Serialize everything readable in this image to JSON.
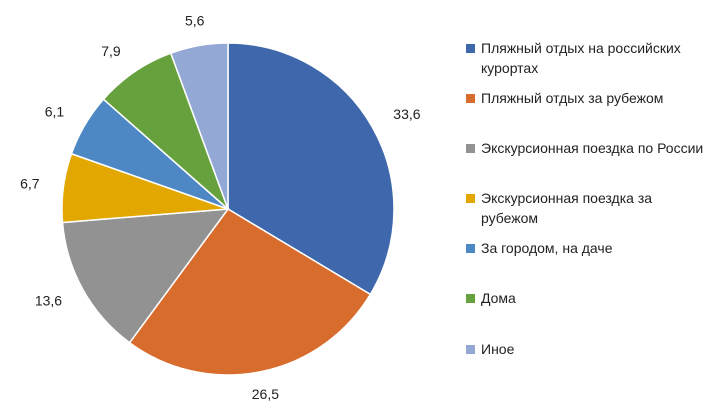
{
  "chart_data": {
    "type": "pie",
    "start_angle_deg": 0,
    "direction": "clockwise",
    "legend_position": "right",
    "slices": [
      {
        "label": "Пляжный отдых на российских курортах",
        "value": 33.6,
        "value_label": "33,6",
        "color": "#3F68AC"
      },
      {
        "label": "Пляжный отдых за рубежом",
        "value": 26.5,
        "value_label": "26,5",
        "color": "#D86C2D"
      },
      {
        "label": "Экскурсионная поездка по России",
        "value": 13.6,
        "value_label": "13,6",
        "color": "#929292"
      },
      {
        "label": "Экскурсионная поездка за рубежом",
        "value": 6.7,
        "value_label": "6,7",
        "color": "#E2A700"
      },
      {
        "label": "За городом, на даче",
        "value": 6.1,
        "value_label": "6,1",
        "color": "#4E88C4"
      },
      {
        "label": "Дома",
        "value": 7.9,
        "value_label": "7,9",
        "color": "#66A13E"
      },
      {
        "label": "Иное",
        "value": 5.6,
        "value_label": "5,6",
        "color": "#93A8D5"
      }
    ]
  }
}
